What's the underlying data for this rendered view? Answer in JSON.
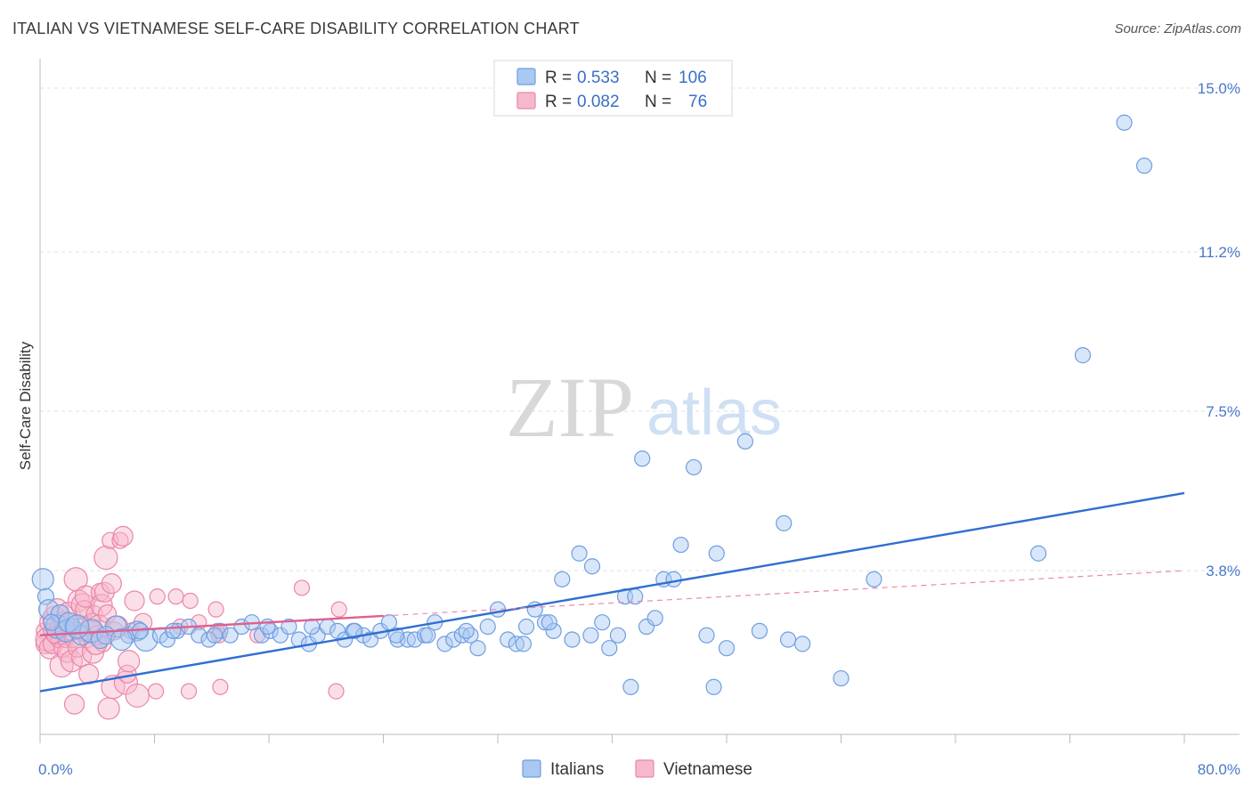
{
  "header": {
    "title": "ITALIAN VS VIETNAMESE SELF-CARE DISABILITY CORRELATION CHART",
    "source": "Source: ZipAtlas.com"
  },
  "watermark": {
    "zip": "ZIP",
    "atlas": "atlas"
  },
  "legend": {
    "rows": [
      {
        "r_label": "R = ",
        "r_value": "0.533",
        "n_label": "N = ",
        "n_value": "106",
        "color": "#a9c8f2"
      },
      {
        "r_label": "R = ",
        "r_value": "0.082",
        "n_label": "N = ",
        "n_value": "76",
        "color": "#f6b9cc"
      }
    ]
  },
  "chart_data": {
    "type": "scatter",
    "title": "ITALIAN VS VIETNAMESE SELF-CARE DISABILITY CORRELATION CHART",
    "ylabel": "Self-Care Disability",
    "xlabel": "",
    "xlim": [
      0,
      80
    ],
    "ylim": [
      0,
      15.6
    ],
    "x_tick_labels": [
      "0.0%",
      "80.0%"
    ],
    "y_ticks": [
      3.8,
      7.5,
      11.2,
      15.0
    ],
    "y_tick_labels": [
      "3.8%",
      "7.5%",
      "11.2%",
      "15.0%"
    ],
    "grid": true,
    "legend_position": "top-center",
    "series": [
      {
        "name": "Italians",
        "color": "#6f9ee0",
        "fill": "#a9c8f2",
        "trend": {
          "x": [
            0,
            80
          ],
          "y": [
            1.0,
            5.6
          ]
        },
        "points": [
          [
            0.4,
            3.2
          ],
          [
            0.6,
            2.9
          ],
          [
            1.2,
            2.5
          ],
          [
            1.4,
            2.8
          ],
          [
            1.8,
            2.4
          ],
          [
            2.3,
            2.5
          ],
          [
            2.9,
            2.3
          ],
          [
            3.6,
            2.4
          ],
          [
            4.2,
            2.2
          ],
          [
            5.3,
            2.5
          ],
          [
            6.2,
            2.3
          ],
          [
            6.8,
            2.4
          ],
          [
            7.4,
            2.2
          ],
          [
            8.4,
            2.3
          ],
          [
            8.9,
            2.2
          ],
          [
            9.6,
            2.4
          ],
          [
            10.4,
            2.5
          ],
          [
            11.1,
            2.3
          ],
          [
            11.8,
            2.2
          ],
          [
            12.6,
            2.4
          ],
          [
            13.3,
            2.3
          ],
          [
            14.1,
            2.5
          ],
          [
            14.8,
            2.6
          ],
          [
            15.5,
            2.3
          ],
          [
            16.1,
            2.4
          ],
          [
            16.8,
            2.3
          ],
          [
            17.4,
            2.5
          ],
          [
            18.1,
            2.2
          ],
          [
            18.8,
            2.1
          ],
          [
            19.4,
            2.3
          ],
          [
            20.1,
            2.5
          ],
          [
            20.8,
            2.4
          ],
          [
            21.3,
            2.2
          ],
          [
            21.9,
            2.4
          ],
          [
            22.6,
            2.3
          ],
          [
            23.1,
            2.2
          ],
          [
            23.8,
            2.4
          ],
          [
            24.4,
            2.6
          ],
          [
            25.0,
            2.2
          ],
          [
            25.7,
            2.2
          ],
          [
            26.2,
            2.2
          ],
          [
            26.9,
            2.3
          ],
          [
            27.6,
            2.6
          ],
          [
            28.3,
            2.1
          ],
          [
            28.9,
            2.2
          ],
          [
            29.5,
            2.3
          ],
          [
            30.1,
            2.3
          ],
          [
            30.6,
            2.0
          ],
          [
            31.3,
            2.5
          ],
          [
            32.0,
            2.9
          ],
          [
            32.7,
            2.2
          ],
          [
            33.3,
            2.1
          ],
          [
            34.0,
            2.5
          ],
          [
            34.6,
            2.9
          ],
          [
            35.3,
            2.6
          ],
          [
            35.9,
            2.4
          ],
          [
            36.5,
            3.6
          ],
          [
            37.2,
            2.2
          ],
          [
            37.7,
            4.2
          ],
          [
            38.5,
            2.3
          ],
          [
            38.6,
            3.9
          ],
          [
            39.3,
            2.6
          ],
          [
            39.8,
            2.0
          ],
          [
            40.4,
            2.3
          ],
          [
            40.9,
            3.2
          ],
          [
            41.3,
            1.1
          ],
          [
            41.6,
            3.2
          ],
          [
            42.1,
            6.4
          ],
          [
            42.4,
            2.5
          ],
          [
            43.0,
            2.7
          ],
          [
            43.6,
            3.6
          ],
          [
            44.3,
            3.6
          ],
          [
            44.8,
            4.4
          ],
          [
            45.7,
            6.2
          ],
          [
            46.6,
            2.3
          ],
          [
            47.1,
            1.1
          ],
          [
            47.3,
            4.2
          ],
          [
            48.0,
            2.0
          ],
          [
            49.3,
            6.8
          ],
          [
            50.3,
            2.4
          ],
          [
            52.0,
            4.9
          ],
          [
            52.3,
            2.2
          ],
          [
            53.3,
            2.1
          ],
          [
            56.0,
            1.3
          ],
          [
            58.3,
            3.6
          ],
          [
            69.8,
            4.2
          ],
          [
            72.9,
            8.8
          ],
          [
            75.8,
            14.2
          ],
          [
            77.2,
            13.2
          ],
          [
            0.2,
            3.6
          ],
          [
            0.8,
            2.6
          ],
          [
            2.0,
            2.6
          ],
          [
            2.6,
            2.5
          ],
          [
            4.6,
            2.3
          ],
          [
            5.7,
            2.2
          ],
          [
            7.0,
            2.4
          ],
          [
            9.3,
            2.4
          ],
          [
            12.2,
            2.3
          ],
          [
            15.9,
            2.5
          ],
          [
            19.0,
            2.5
          ],
          [
            22.0,
            2.4
          ],
          [
            24.9,
            2.3
          ],
          [
            27.1,
            2.3
          ],
          [
            29.8,
            2.4
          ],
          [
            33.8,
            2.1
          ],
          [
            35.6,
            2.6
          ]
        ]
      },
      {
        "name": "Vietnamese",
        "color": "#ea86a8",
        "fill": "#f6b9cc",
        "trend": {
          "x": [
            0,
            24
          ],
          "y": [
            2.3,
            2.75
          ],
          "dashed_to": [
            80,
            3.8
          ]
        },
        "points": [
          [
            0.3,
            2.4
          ],
          [
            0.4,
            2.1
          ],
          [
            0.5,
            2.2
          ],
          [
            0.6,
            2.6
          ],
          [
            0.7,
            2.0
          ],
          [
            0.8,
            2.4
          ],
          [
            0.9,
            2.1
          ],
          [
            1.0,
            2.7
          ],
          [
            1.1,
            2.3
          ],
          [
            1.2,
            2.9
          ],
          [
            1.3,
            2.2
          ],
          [
            1.4,
            2.5
          ],
          [
            1.5,
            1.6
          ],
          [
            1.6,
            2.0
          ],
          [
            1.7,
            2.6
          ],
          [
            1.8,
            2.2
          ],
          [
            1.9,
            1.9
          ],
          [
            2.0,
            2.8
          ],
          [
            2.1,
            2.4
          ],
          [
            2.2,
            1.7
          ],
          [
            2.3,
            2.2
          ],
          [
            2.4,
            0.7
          ],
          [
            2.5,
            3.6
          ],
          [
            2.6,
            2.0
          ],
          [
            2.7,
            3.1
          ],
          [
            2.8,
            2.5
          ],
          [
            2.9,
            1.8
          ],
          [
            3.0,
            3.0
          ],
          [
            3.1,
            2.9
          ],
          [
            3.2,
            3.2
          ],
          [
            3.3,
            2.2
          ],
          [
            3.4,
            1.4
          ],
          [
            3.5,
            2.4
          ],
          [
            3.6,
            2.6
          ],
          [
            3.7,
            1.9
          ],
          [
            3.8,
            2.8
          ],
          [
            4.0,
            2.3
          ],
          [
            4.1,
            2.5
          ],
          [
            4.2,
            3.3
          ],
          [
            4.3,
            3.0
          ],
          [
            4.4,
            2.1
          ],
          [
            4.5,
            3.3
          ],
          [
            4.6,
            4.1
          ],
          [
            4.7,
            2.8
          ],
          [
            4.8,
            0.6
          ],
          [
            4.9,
            4.5
          ],
          [
            5.0,
            3.5
          ],
          [
            5.1,
            1.1
          ],
          [
            5.2,
            2.4
          ],
          [
            5.4,
            2.5
          ],
          [
            5.6,
            4.5
          ],
          [
            5.8,
            4.6
          ],
          [
            6.0,
            1.2
          ],
          [
            6.1,
            1.4
          ],
          [
            6.2,
            1.7
          ],
          [
            6.4,
            2.4
          ],
          [
            6.6,
            3.1
          ],
          [
            6.8,
            0.9
          ],
          [
            7.2,
            2.6
          ],
          [
            8.1,
            1.0
          ],
          [
            8.2,
            3.2
          ],
          [
            9.5,
            3.2
          ],
          [
            10.4,
            1.0
          ],
          [
            10.5,
            3.1
          ],
          [
            11.1,
            2.6
          ],
          [
            12.3,
            2.9
          ],
          [
            12.4,
            2.4
          ],
          [
            12.5,
            2.3
          ],
          [
            12.6,
            1.1
          ],
          [
            18.3,
            3.4
          ],
          [
            20.9,
            2.9
          ],
          [
            20.7,
            1.0
          ],
          [
            15.2,
            2.3
          ],
          [
            9.8,
            2.5
          ],
          [
            3.9,
            2.1
          ],
          [
            1.0,
            2.3
          ]
        ]
      }
    ]
  },
  "bottom_legend": [
    {
      "label": "Italians",
      "color": "#a9c8f2",
      "stroke": "#6f9ee0"
    },
    {
      "label": "Vietnamese",
      "color": "#f6b9cc",
      "stroke": "#ea86a8"
    }
  ]
}
